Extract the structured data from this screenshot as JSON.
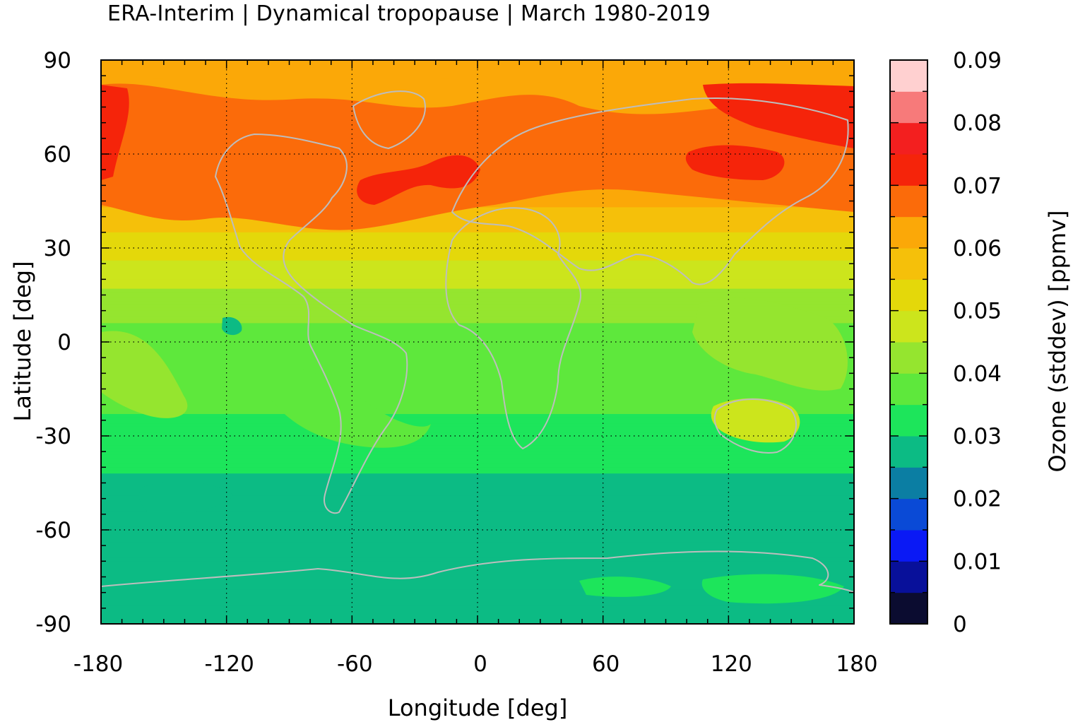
{
  "title": "ERA-Interim | Dynamical tropopause | March 1980-2019",
  "x_axis": {
    "label": "Longitude [deg]",
    "ticks": [
      "-180",
      "-120",
      "-60",
      "0",
      "60",
      "120",
      "180"
    ]
  },
  "y_axis": {
    "label": "Latitude [deg]",
    "ticks": [
      "90",
      "60",
      "30",
      "0",
      "-30",
      "-60",
      "-90"
    ]
  },
  "colorbar": {
    "label": "Ozone (stddev) [ppmv]",
    "ticks": [
      "0.09",
      "0.08",
      "0.07",
      "0.06",
      "0.05",
      "0.04",
      "0.03",
      "0.02",
      "0.01",
      "0"
    ],
    "range": [
      0,
      0.09
    ],
    "bands": [
      {
        "from": 0.0,
        "to": 0.005,
        "color": "#0b0c30"
      },
      {
        "from": 0.005,
        "to": 0.01,
        "color": "#08109a"
      },
      {
        "from": 0.01,
        "to": 0.015,
        "color": "#0a19f5"
      },
      {
        "from": 0.015,
        "to": 0.02,
        "color": "#0a4ad6"
      },
      {
        "from": 0.02,
        "to": 0.025,
        "color": "#0b7ea3"
      },
      {
        "from": 0.025,
        "to": 0.03,
        "color": "#0cbb84"
      },
      {
        "from": 0.03,
        "to": 0.035,
        "color": "#1de55b"
      },
      {
        "from": 0.035,
        "to": 0.04,
        "color": "#5ee83c"
      },
      {
        "from": 0.04,
        "to": 0.045,
        "color": "#95e52f"
      },
      {
        "from": 0.045,
        "to": 0.05,
        "color": "#cce51c"
      },
      {
        "from": 0.05,
        "to": 0.055,
        "color": "#e4d80a"
      },
      {
        "from": 0.055,
        "to": 0.06,
        "color": "#f5c00a"
      },
      {
        "from": 0.06,
        "to": 0.065,
        "color": "#fba808"
      },
      {
        "from": 0.065,
        "to": 0.07,
        "color": "#fb6b0a"
      },
      {
        "from": 0.07,
        "to": 0.075,
        "color": "#f5240a"
      },
      {
        "from": 0.075,
        "to": 0.08,
        "color": "#f31f1f"
      },
      {
        "from": 0.08,
        "to": 0.085,
        "color": "#f77a7a"
      },
      {
        "from": 0.085,
        "to": 0.09,
        "color": "#ffd0d0"
      }
    ]
  },
  "map": {
    "projection": "equirectangular",
    "lon_range": [
      -180,
      180
    ],
    "lat_range": [
      -90,
      90
    ],
    "grid": "dotted",
    "coastline_color": "#bdbdbd",
    "field_zonal_profile": [
      {
        "lat": 90,
        "value": 0.061
      },
      {
        "lat": 75,
        "value": 0.064
      },
      {
        "lat": 60,
        "value": 0.066
      },
      {
        "lat": 45,
        "value": 0.061
      },
      {
        "lat": 30,
        "value": 0.052
      },
      {
        "lat": 15,
        "value": 0.044
      },
      {
        "lat": 0,
        "value": 0.037
      },
      {
        "lat": -15,
        "value": 0.036
      },
      {
        "lat": -30,
        "value": 0.034
      },
      {
        "lat": -45,
        "value": 0.029
      },
      {
        "lat": -60,
        "value": 0.028
      },
      {
        "lat": -75,
        "value": 0.027
      },
      {
        "lat": -90,
        "value": 0.027
      }
    ]
  }
}
